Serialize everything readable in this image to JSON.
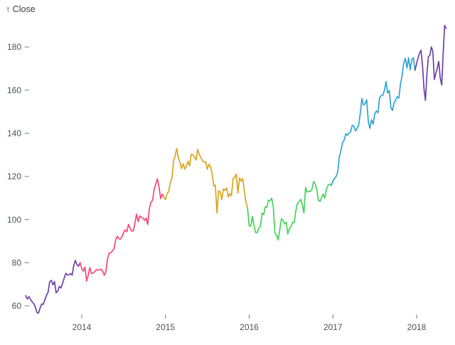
{
  "title": "↑ Close",
  "chart_data": {
    "type": "line",
    "title": "↑ Close",
    "ylabel": "Close",
    "xlabel": "",
    "grid": false,
    "legend": "none",
    "x_axis": {
      "ticks": [
        2014,
        2015,
        2016,
        2017,
        2018
      ],
      "range": [
        2013.33,
        2018.4
      ]
    },
    "y_axis": {
      "ticks": [
        60,
        80,
        100,
        120,
        140,
        160,
        180
      ],
      "range": [
        56,
        191
      ]
    },
    "segments": [
      {
        "year": 2013,
        "color": "#6e40aa",
        "t_start": 2013.33,
        "t_end": 2014,
        "values": [
          64.7,
          63.2,
          64.3,
          63.0,
          61.9,
          61.1,
          59.5,
          57.0,
          56.6,
          59.0,
          60.9,
          60.7,
          62.9,
          64.9,
          66.4,
          71.2,
          71.8,
          69.8,
          71.2,
          66.1,
          66.8,
          69.0,
          68.3,
          70.4,
          72.7,
          75.1,
          74.3,
          74.4,
          75.0,
          74.2,
          78.7,
          81.1,
          79.2,
          78.4,
          80.0
        ]
      },
      {
        "year": 2014,
        "color": "#f94572",
        "t_start": 2014,
        "t_end": 2015,
        "values": [
          77.3,
          76.1,
          78.0,
          71.5,
          74.2,
          77.7,
          75.0,
          75.2,
          75.8,
          76.7,
          76.6,
          76.7,
          77.0,
          76.0,
          74.2,
          76.0,
          81.7,
          84.5,
          84.6,
          85.4,
          86.4,
          90.4,
          92.2,
          91.3,
          90.9,
          92.0,
          94.0,
          95.2,
          94.4,
          97.7,
          96.1,
          94.7,
          94.7,
          98.1,
          102.5,
          99.0,
          101.7,
          101.0,
          100.8,
          99.6,
          100.7,
          97.7,
          105.2,
          108.0,
          109.0,
          114.2,
          116.5,
          118.9,
          115.0,
          109.7,
          111.8,
          110.4
        ]
      },
      {
        "year": 2015,
        "color": "#d9a521",
        "t_start": 2015,
        "t_end": 2016,
        "values": [
          109.3,
          112.0,
          113.0,
          117.2,
          118.9,
          127.1,
          129.5,
          133.0,
          128.5,
          126.6,
          123.6,
          125.9,
          123.3,
          124.8,
          127.1,
          124.8,
          130.3,
          130.1,
          129.0,
          127.6,
          132.5,
          130.3,
          128.7,
          127.2,
          126.6,
          126.8,
          123.3,
          125.7,
          124.5,
          121.3,
          115.5,
          116.0,
          103.1,
          113.3,
          112.8,
          109.3,
          114.2,
          113.5,
          114.7,
          110.4,
          112.1,
          111.0,
          119.1,
          119.5,
          121.1,
          112.3,
          119.3,
          117.8,
          119.0,
          113.2,
          108.0,
          105.3
        ]
      },
      {
        "year": 2016,
        "color": "#45d35a",
        "t_start": 2016,
        "t_end": 2017,
        "values": [
          97.0,
          97.1,
          101.4,
          97.3,
          94.0,
          94.0,
          96.0,
          96.9,
          103.0,
          102.3,
          105.9,
          105.7,
          109.0,
          108.7,
          109.9,
          105.7,
          93.7,
          92.7,
          90.5,
          95.2,
          100.4,
          99.6,
          97.9,
          98.8,
          93.4,
          95.9,
          96.7,
          98.8,
          98.7,
          104.2,
          107.5,
          108.2,
          109.4,
          106.9,
          103.1,
          114.9,
          112.7,
          113.1,
          113.0,
          114.1,
          117.6,
          116.6,
          113.7,
          108.8,
          108.4,
          110.1,
          111.8,
          109.9,
          114.0,
          116.0,
          116.5,
          115.8
        ]
      },
      {
        "year": 2017,
        "color": "#2ba6d6",
        "t_start": 2017,
        "t_end": 2018,
        "values": [
          117.9,
          119.0,
          120.0,
          122.0,
          129.1,
          132.1,
          135.7,
          136.7,
          139.8,
          139.1,
          140.0,
          140.6,
          143.7,
          143.3,
          141.1,
          142.3,
          143.7,
          149.0,
          156.1,
          153.1,
          153.6,
          155.5,
          145.4,
          142.3,
          146.3,
          144.2,
          149.0,
          150.3,
          149.5,
          156.4,
          157.5,
          157.5,
          159.9,
          164.0,
          158.6,
          159.9,
          151.9,
          150.6,
          154.1,
          155.3,
          157.0,
          156.3,
          163.1,
          166.7,
          172.5,
          174.7,
          170.2,
          175.0,
          169.4,
          174.0,
          175.0,
          169.2
        ]
      },
      {
        "year": 2018,
        "color": "#6e40aa",
        "t_start": 2018,
        "t_end": 2018.37,
        "values": [
          172.3,
          175.0,
          177.1,
          178.5,
          171.5,
          160.5,
          155.2,
          167.4,
          175.5,
          176.2,
          180.0,
          178.0,
          164.9,
          167.8,
          170.0,
          173.3,
          165.7,
          162.3,
          176.6,
          190.0,
          188.6
        ]
      }
    ]
  }
}
